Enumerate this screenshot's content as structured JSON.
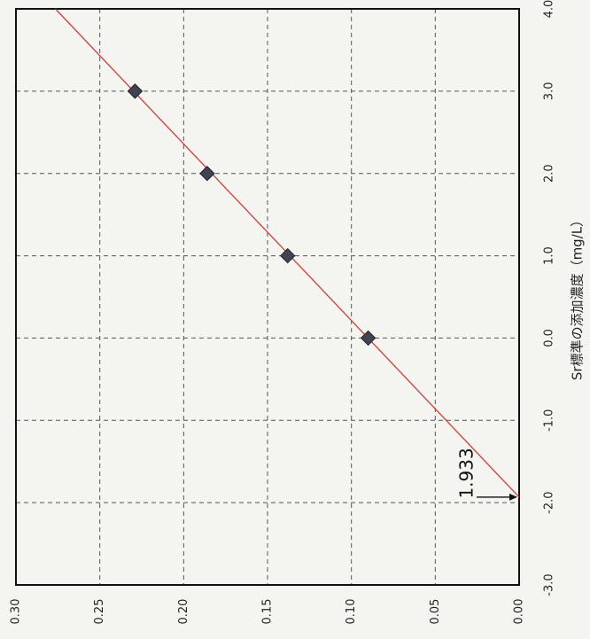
{
  "chart_data": {
    "type": "scatter",
    "orientation": "rotated-90-clockwise",
    "title": "",
    "xlabel": "Sr標準の添加濃度（mg/L）",
    "ylabel": "",
    "xlim": [
      -3.0,
      4.0
    ],
    "ylim": [
      0.0,
      0.3
    ],
    "x_ticks": [
      "-3.0",
      "-2.0",
      "-1.0",
      "0.0",
      "1.0",
      "2.0",
      "3.0",
      "4.0"
    ],
    "y_ticks": [
      "0.00",
      "0.05",
      "0.10",
      "0.15",
      "0.20",
      "0.25",
      "0.30"
    ],
    "grid": true,
    "series": [
      {
        "marker": "diamond",
        "color": "#3f4450",
        "points": [
          {
            "x": 0.0,
            "y": 0.09
          },
          {
            "x": 1.0,
            "y": 0.138
          },
          {
            "x": 2.0,
            "y": 0.186
          },
          {
            "x": 3.0,
            "y": 0.229
          }
        ]
      }
    ],
    "fit_line": {
      "color": "#d83b33",
      "x_from": -1.933,
      "x_to": 4.0,
      "y_at_x_from": 0.0,
      "slope": 0.0466
    },
    "annotations": [
      {
        "text": "1.933",
        "points_to_x": -1.933,
        "points_to_y": 0.0
      }
    ]
  }
}
